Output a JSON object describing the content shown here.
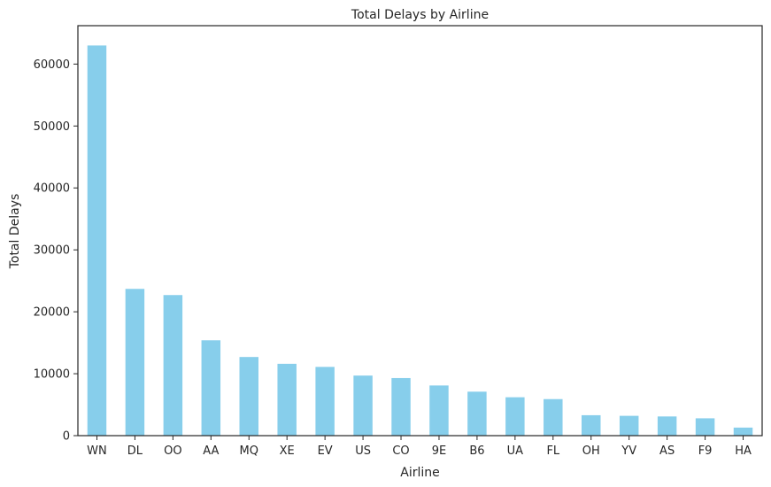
{
  "chart_data": {
    "type": "bar",
    "title": "Total Delays by Airline",
    "xlabel": "Airline",
    "ylabel": "Total Delays",
    "categories": [
      "WN",
      "DL",
      "OO",
      "AA",
      "MQ",
      "XE",
      "EV",
      "US",
      "CO",
      "9E",
      "B6",
      "UA",
      "FL",
      "OH",
      "YV",
      "AS",
      "F9",
      "HA"
    ],
    "values": [
      63000,
      23700,
      22700,
      15400,
      12700,
      11600,
      11100,
      9700,
      9300,
      8100,
      7100,
      6200,
      5900,
      3300,
      3200,
      3100,
      2800,
      1300
    ],
    "ylim": [
      0,
      66200
    ],
    "yticks": [
      0,
      10000,
      20000,
      30000,
      40000,
      50000,
      60000
    ],
    "bar_color": "#87ceeb",
    "grid": false,
    "legend": "none"
  }
}
